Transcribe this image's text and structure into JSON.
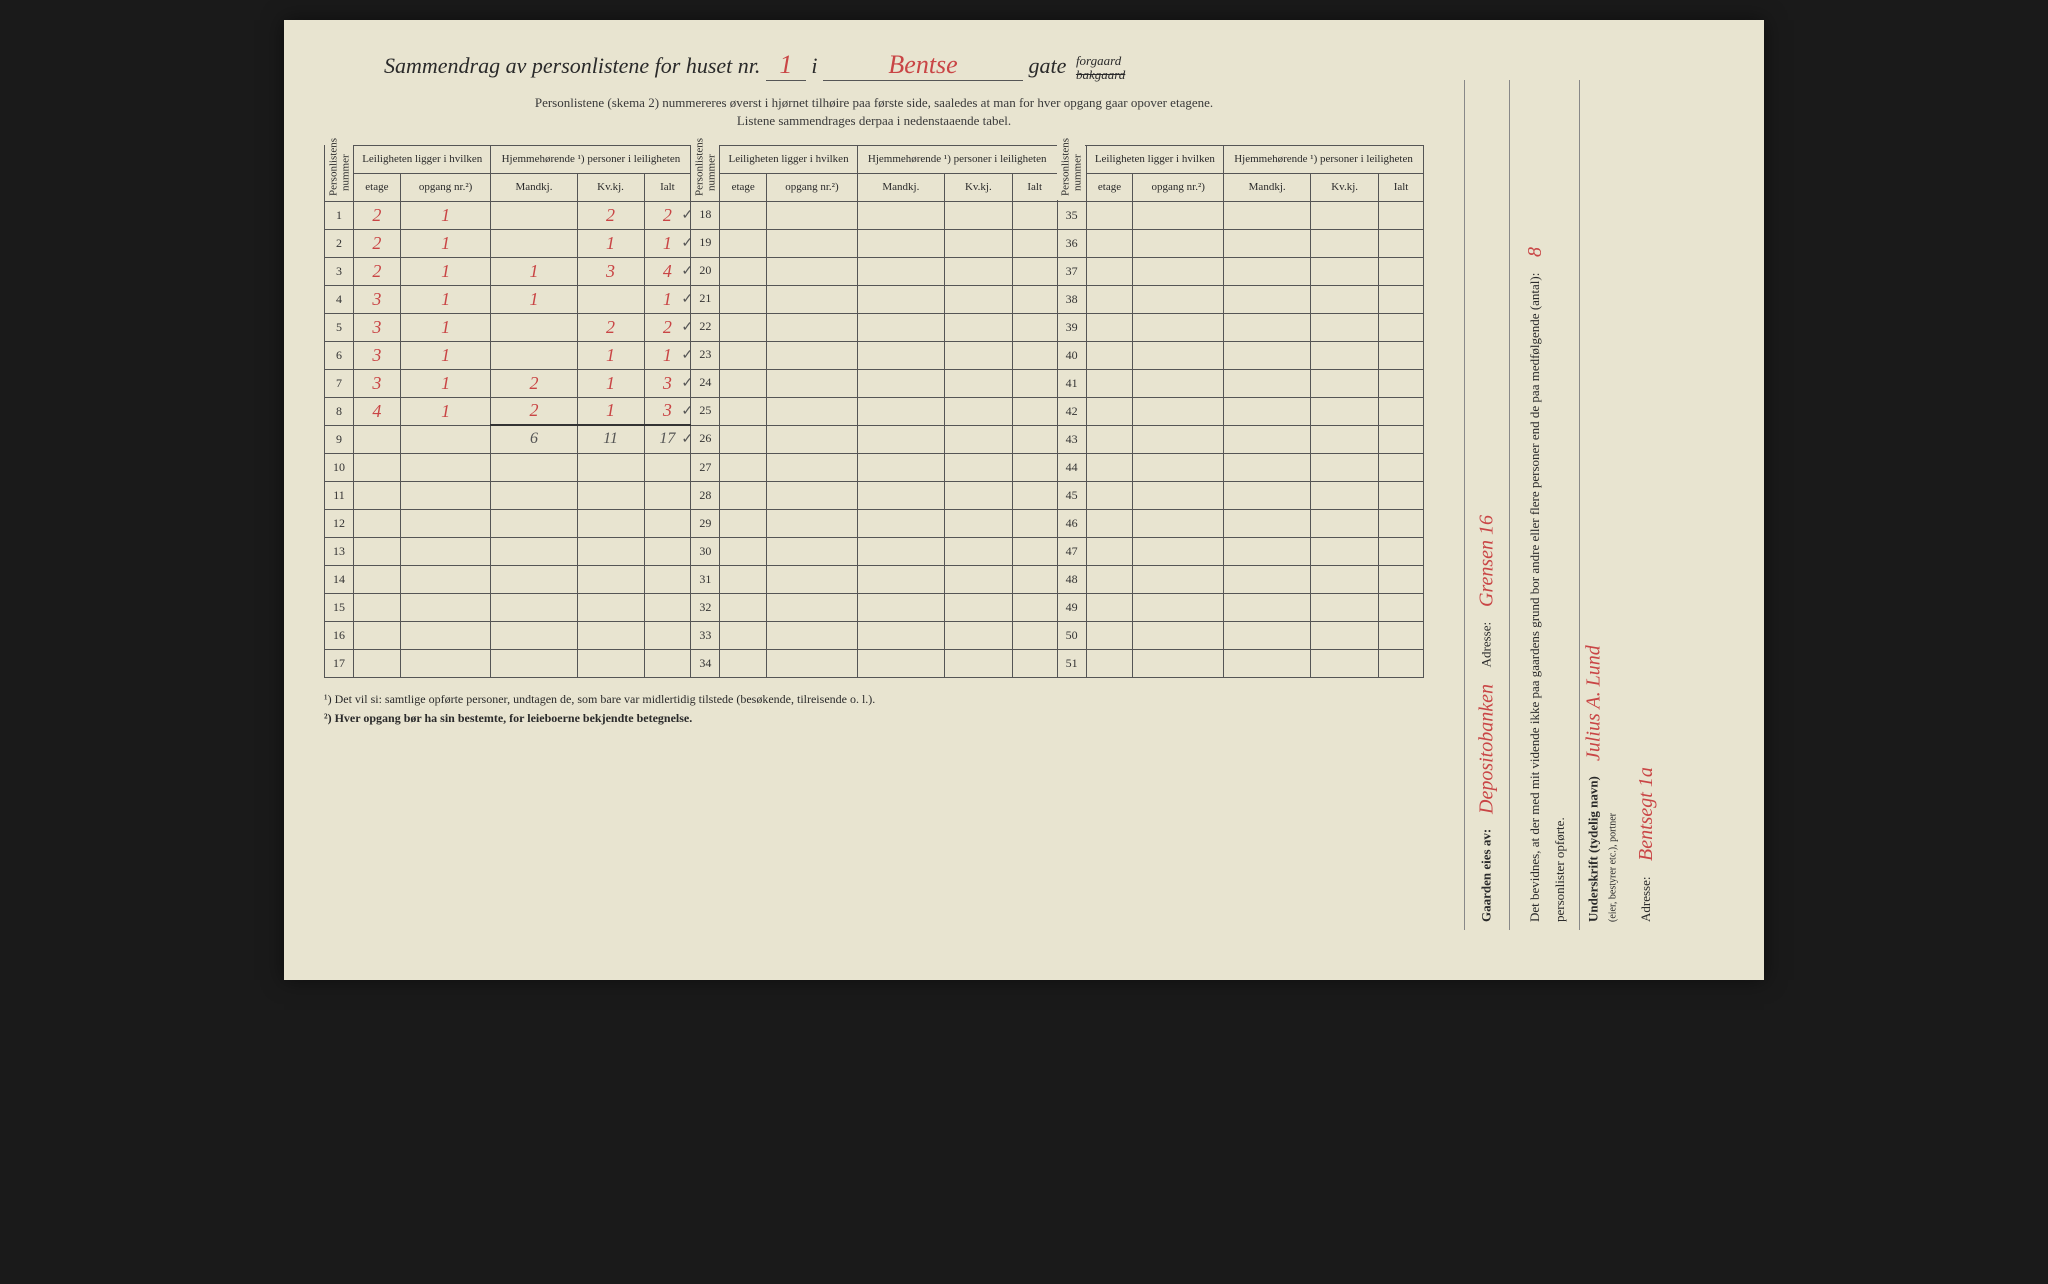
{
  "title": {
    "prefix": "Sammendrag av personlistene for huset nr.",
    "house_nr": "1",
    "i": "i",
    "street": "Bentse",
    "gate": "gate",
    "forgaard": "forgaard",
    "bakgaard": "bakgaard"
  },
  "subtitle_line1": "Personlistene (skema 2) nummereres øverst i hjørnet tilhøire paa første side, saaledes at man for hver opgang gaar opover etagene.",
  "subtitle_line2": "Listene sammendrages derpaa i nedenstaaende tabel.",
  "headers": {
    "personlist_nr": "Personlistens nummer",
    "leilighet": "Leiligheten ligger i hvilken",
    "hjemme": "Hjemmehørende ¹) personer i leiligheten",
    "etage": "etage",
    "opgang": "opgang nr.²)",
    "mandkj": "Mandkj.",
    "kvkj": "Kv.kj.",
    "ialt": "Ialt"
  },
  "rows_block1": [
    {
      "n": "1",
      "etage": "2",
      "opgang": "1",
      "m": "",
      "k": "2",
      "i": "2",
      "chk": "✓"
    },
    {
      "n": "2",
      "etage": "2",
      "opgang": "1",
      "m": "",
      "k": "1",
      "i": "1",
      "chk": "✓"
    },
    {
      "n": "3",
      "etage": "2",
      "opgang": "1",
      "m": "1",
      "k": "3",
      "i": "4",
      "chk": "✓"
    },
    {
      "n": "4",
      "etage": "3",
      "opgang": "1",
      "m": "1",
      "k": "",
      "i": "1",
      "chk": "✓"
    },
    {
      "n": "5",
      "etage": "3",
      "opgang": "1",
      "m": "",
      "k": "2",
      "i": "2",
      "chk": "✓"
    },
    {
      "n": "6",
      "etage": "3",
      "opgang": "1",
      "m": "",
      "k": "1",
      "i": "1",
      "chk": "✓"
    },
    {
      "n": "7",
      "etage": "3",
      "opgang": "1",
      "m": "2",
      "k": "1",
      "i": "3",
      "chk": "✓"
    },
    {
      "n": "8",
      "etage": "4",
      "opgang": "1",
      "m": "2",
      "k": "1",
      "i": "3",
      "chk": "✓"
    }
  ],
  "totals_row": {
    "n": "9",
    "m": "6",
    "k": "11",
    "i": "17",
    "chk": "✓"
  },
  "empty_rows_b1": [
    "10",
    "11",
    "12",
    "13",
    "14",
    "15",
    "16",
    "17"
  ],
  "rows_block2_nums": [
    "18",
    "19",
    "20",
    "21",
    "22",
    "23",
    "24",
    "25",
    "26",
    "27",
    "28",
    "29",
    "30",
    "31",
    "32",
    "33",
    "34"
  ],
  "rows_block3_nums": [
    "35",
    "36",
    "37",
    "38",
    "39",
    "40",
    "41",
    "42",
    "43",
    "44",
    "45",
    "46",
    "47",
    "48",
    "49",
    "50",
    "51"
  ],
  "footnotes": {
    "f1": "¹)  Det vil si: samtlige opførte personer, undtagen de, som bare var midlertidig tilstede (besøkende, tilreisende o. l.).",
    "f2": "²)  Hver opgang bør ha sin bestemte, for leieboerne bekjendte betegnelse."
  },
  "side": {
    "bevidnes": "Det bevidnes, at der med mit vidende ikke paa gaardens grund bor andre eller flere personer end de paa medfølgende (antal):",
    "personlister": "personlister opførte.",
    "underskrift_label": "Underskrift (tydelig navn)",
    "underskrift_sub": "(eier, bestyrer etc.), portner",
    "underskrift_value": "Julius A. Lund",
    "adresse1_label": "Adresse:",
    "adresse1_value": "Bentsegt 1a",
    "gaarden_label": "Gaarden eies av:",
    "gaarden_value": "Depositobanken",
    "adresse2_label": "Adresse:",
    "adresse2_value": "Grensen 16",
    "count": "8"
  },
  "colors": {
    "paper": "#e8e4d0",
    "ink": "#2a2a2a",
    "red_ink": "#c94545",
    "pencil": "#555555",
    "border": "#555555"
  }
}
